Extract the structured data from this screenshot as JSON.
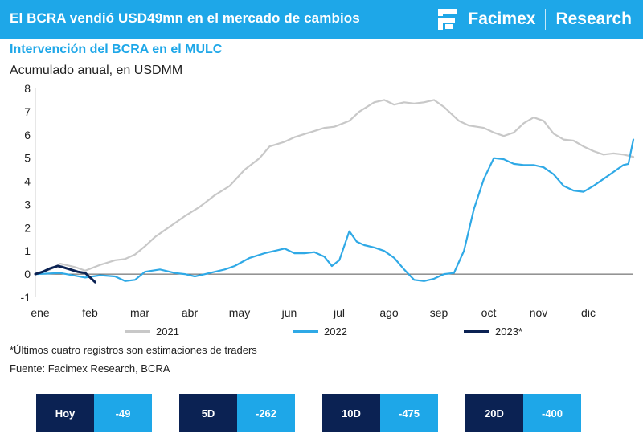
{
  "header": {
    "title": "El BCRA vendió USD49mn en el mercado de cambios",
    "brand_name": "Facimex",
    "brand_section": "Research"
  },
  "subtitle": "Intervención del BCRA en el MULC",
  "unit_label": "Acumulado anual, en USDMM",
  "chart_data": {
    "type": "line",
    "x_unit": "month index (0 = start of Jan, 12 = end of Dec)",
    "xlim": [
      0,
      12
    ],
    "ylim": [
      -1,
      8
    ],
    "y_ticks": [
      "-1",
      "0",
      "1",
      "2",
      "3",
      "4",
      "5",
      "6",
      "7",
      "8"
    ],
    "x_tick_labels": [
      "ene",
      "feb",
      "mar",
      "abr",
      "may",
      "jun",
      "jul",
      "ago",
      "sep",
      "oct",
      "nov",
      "dic"
    ],
    "grid": false,
    "legend_position": "bottom",
    "series": [
      {
        "name": "2021",
        "color": "#c8c8c8",
        "x": [
          0,
          0.3,
          0.5,
          0.8,
          1.0,
          1.3,
          1.6,
          1.8,
          2.0,
          2.2,
          2.4,
          2.6,
          2.8,
          3.0,
          3.3,
          3.6,
          3.9,
          4.2,
          4.5,
          4.7,
          5.0,
          5.2,
          5.5,
          5.8,
          6.0,
          6.3,
          6.5,
          6.8,
          7.0,
          7.2,
          7.4,
          7.6,
          7.8,
          8.0,
          8.2,
          8.4,
          8.5,
          8.7,
          9.0,
          9.2,
          9.4,
          9.6,
          9.8,
          10.0,
          10.2,
          10.4,
          10.6,
          10.8,
          11.0,
          11.2,
          11.4,
          11.6,
          11.8,
          12.0
        ],
        "y": [
          0,
          0.2,
          0.45,
          0.3,
          0.15,
          0.4,
          0.6,
          0.65,
          0.85,
          1.2,
          1.6,
          1.9,
          2.2,
          2.5,
          2.9,
          3.4,
          3.8,
          4.5,
          5.0,
          5.5,
          5.7,
          5.9,
          6.1,
          6.3,
          6.35,
          6.6,
          7.0,
          7.4,
          7.5,
          7.3,
          7.4,
          7.35,
          7.4,
          7.5,
          7.2,
          6.8,
          6.6,
          6.4,
          6.3,
          6.1,
          5.95,
          6.1,
          6.5,
          6.75,
          6.6,
          6.05,
          5.8,
          5.75,
          5.5,
          5.3,
          5.15,
          5.2,
          5.15,
          5.05
        ]
      },
      {
        "name": "2022",
        "color": "#2fa9e6",
        "x": [
          0,
          0.5,
          1.0,
          1.3,
          1.6,
          1.8,
          2.0,
          2.2,
          2.5,
          2.8,
          3.0,
          3.2,
          3.5,
          3.8,
          4.0,
          4.3,
          4.6,
          4.8,
          5.0,
          5.2,
          5.4,
          5.6,
          5.8,
          5.95,
          6.1,
          6.3,
          6.45,
          6.6,
          6.8,
          7.0,
          7.2,
          7.4,
          7.6,
          7.8,
          8.0,
          8.2,
          8.4,
          8.6,
          8.8,
          9.0,
          9.2,
          9.4,
          9.6,
          9.8,
          10.0,
          10.2,
          10.4,
          10.6,
          10.8,
          11.0,
          11.2,
          11.4,
          11.6,
          11.8,
          11.9,
          12.0
        ],
        "y": [
          0,
          0.05,
          -0.15,
          -0.05,
          -0.1,
          -0.3,
          -0.25,
          0.1,
          0.2,
          0.05,
          0.0,
          -0.1,
          0.05,
          0.2,
          0.35,
          0.7,
          0.9,
          1.0,
          1.1,
          0.9,
          0.9,
          0.95,
          0.75,
          0.35,
          0.6,
          1.85,
          1.4,
          1.25,
          1.15,
          1.0,
          0.7,
          0.2,
          -0.25,
          -0.3,
          -0.2,
          0.0,
          0.05,
          1.0,
          2.8,
          4.1,
          5.0,
          4.95,
          4.75,
          4.7,
          4.7,
          4.6,
          4.3,
          3.8,
          3.6,
          3.55,
          3.8,
          4.1,
          4.4,
          4.7,
          4.75,
          5.8
        ]
      },
      {
        "name": "2023*",
        "color": "#0b2253",
        "x": [
          0,
          0.15,
          0.3,
          0.45,
          0.55,
          0.7,
          0.85,
          1.0,
          1.1,
          1.2
        ],
        "y": [
          0,
          0.1,
          0.25,
          0.35,
          0.3,
          0.2,
          0.1,
          0.05,
          -0.15,
          -0.35
        ]
      }
    ]
  },
  "footnote": "*Últimos cuatro registros son estimaciones de traders",
  "source": "Fuente: Facimex Research, BCRA",
  "stats": [
    {
      "label": "Hoy",
      "value": "-49"
    },
    {
      "label": "5D",
      "value": "-262"
    },
    {
      "label": "10D",
      "value": "-475"
    },
    {
      "label": "20D",
      "value": "-400"
    }
  ]
}
